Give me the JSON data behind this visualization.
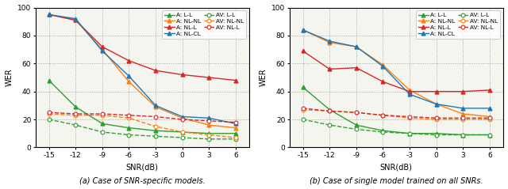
{
  "snr": [
    -15,
    -12,
    -9,
    -6,
    -3,
    0,
    3,
    6
  ],
  "plot_a": {
    "A_LL": [
      48,
      29,
      17,
      14,
      12,
      11,
      10,
      10
    ],
    "A_NLNL": [
      95,
      91,
      70,
      47,
      29,
      21,
      16,
      14
    ],
    "A_NLL": [
      95,
      91,
      72,
      62,
      55,
      52,
      50,
      48
    ],
    "A_NLCL": [
      95,
      92,
      69,
      51,
      30,
      22,
      21,
      17
    ],
    "AV_LL": [
      20,
      16,
      11,
      9,
      8,
      7,
      6,
      6
    ],
    "AV_NLNL": [
      24,
      23,
      23,
      21,
      15,
      11,
      9,
      7
    ],
    "AV_NLL": [
      25,
      24,
      24,
      23,
      22,
      20,
      19,
      18
    ]
  },
  "plot_b": {
    "A_LL": [
      43,
      27,
      16,
      12,
      10,
      10,
      9,
      9
    ],
    "A_NLNL": [
      84,
      75,
      72,
      59,
      41,
      31,
      24,
      22
    ],
    "A_NLL": [
      69,
      56,
      57,
      47,
      40,
      40,
      40,
      41
    ],
    "A_NLCL": [
      84,
      76,
      72,
      58,
      38,
      31,
      28,
      28
    ],
    "AV_LL": [
      20,
      16,
      13,
      11,
      10,
      9,
      9,
      9
    ],
    "AV_NLNL": [
      27,
      26,
      25,
      23,
      21,
      20,
      20,
      20
    ],
    "AV_NLL": [
      28,
      26,
      25,
      23,
      22,
      21,
      21,
      21
    ]
  },
  "colors": {
    "teal": "#2ca02c",
    "orange": "#ff7f0e",
    "red": "#d62728",
    "blue": "#1f77b4"
  },
  "caption_a": "(a) Case of SNR-specific models.",
  "caption_b": "(b) Case of single model trained on all SNRs."
}
